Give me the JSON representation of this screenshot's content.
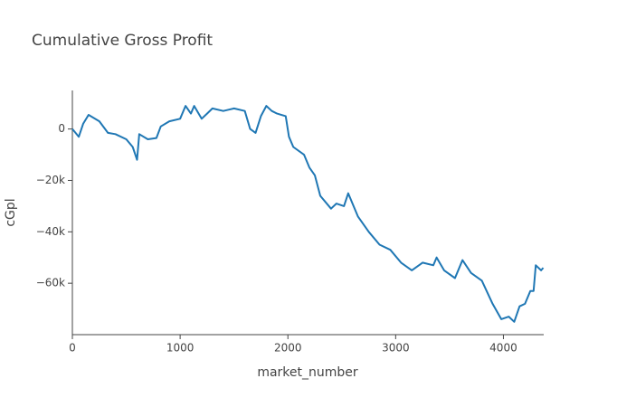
{
  "chart_data": {
    "type": "line",
    "title": "Cumulative Gross Profit",
    "x_label": "market_number",
    "y_label": "cGpl",
    "xlim": [
      0,
      4374
    ],
    "ylim": [
      -80000,
      15000
    ],
    "xticks": [
      0,
      1000,
      2000,
      3000,
      4000
    ],
    "yticks": [
      0,
      {
        "value": -20000,
        "label": "−20k"
      },
      {
        "value": -40000,
        "label": "−40k"
      },
      {
        "value": -60000,
        "label": "−60k"
      }
    ],
    "grid": false,
    "series": [
      {
        "name": "cGpl",
        "color": "#1f77b4",
        "x": [
          0,
          60,
          100,
          150,
          250,
          330,
          400,
          500,
          560,
          600,
          620,
          700,
          780,
          820,
          900,
          1000,
          1050,
          1100,
          1130,
          1200,
          1250,
          1300,
          1400,
          1500,
          1600,
          1650,
          1700,
          1750,
          1800,
          1850,
          1900,
          1980,
          2010,
          2050,
          2150,
          2200,
          2250,
          2300,
          2400,
          2450,
          2520,
          2560,
          2650,
          2750,
          2850,
          2950,
          3050,
          3150,
          3250,
          3350,
          3380,
          3450,
          3550,
          3620,
          3700,
          3800,
          3900,
          3980,
          4050,
          4100,
          4150,
          4200,
          4250,
          4280,
          4300,
          4350,
          4370
        ],
        "values": [
          0,
          -3000,
          2000,
          5500,
          3000,
          -1500,
          -2000,
          -4000,
          -7000,
          -12000,
          -2000,
          -4000,
          -3500,
          1000,
          3000,
          4000,
          9000,
          6000,
          9000,
          4000,
          6000,
          8000,
          7000,
          8000,
          7000,
          0,
          -1500,
          5000,
          9000,
          7000,
          6000,
          5000,
          -3000,
          -7000,
          -10000,
          -15000,
          -18000,
          -26000,
          -31000,
          -29000,
          -30000,
          -25000,
          -34000,
          -40000,
          -45000,
          -47000,
          -52000,
          -55000,
          -52000,
          -53000,
          -50000,
          -55000,
          -58000,
          -51000,
          -56000,
          -59000,
          -68000,
          -74000,
          -73000,
          -75000,
          -69000,
          -68000,
          -63000,
          -63000,
          -53000,
          -55000,
          -54000
        ]
      }
    ]
  }
}
